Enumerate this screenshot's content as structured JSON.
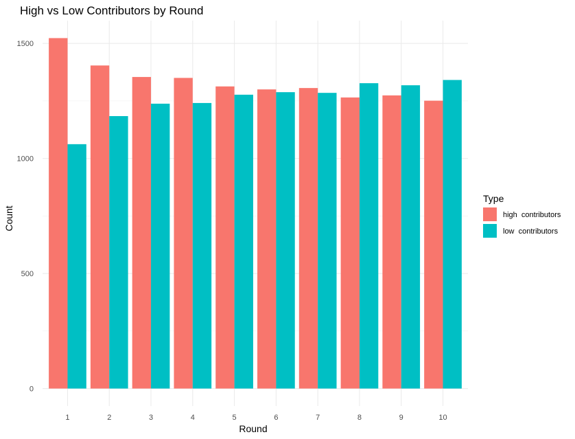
{
  "chart_data": {
    "type": "bar",
    "title": "High vs Low Contributors by Round",
    "xlabel": "Round",
    "ylabel": "Count",
    "categories": [
      "1",
      "2",
      "3",
      "4",
      "5",
      "6",
      "7",
      "8",
      "9",
      "10"
    ],
    "series": [
      {
        "name": "high  contributors",
        "color": "#F8766D",
        "values": [
          1523,
          1404,
          1354,
          1350,
          1313,
          1300,
          1306,
          1265,
          1274,
          1251
        ]
      },
      {
        "name": "low  contributors",
        "color": "#00BFC4",
        "values": [
          1062,
          1184,
          1238,
          1241,
          1277,
          1288,
          1285,
          1327,
          1318,
          1341
        ]
      }
    ],
    "ylim": [
      -76,
      1599
    ],
    "yticks": [
      0,
      500,
      1000,
      1500
    ],
    "yminor": [
      250,
      750,
      1250
    ],
    "grid": true,
    "legend": {
      "title": "Type",
      "position": "right"
    }
  }
}
